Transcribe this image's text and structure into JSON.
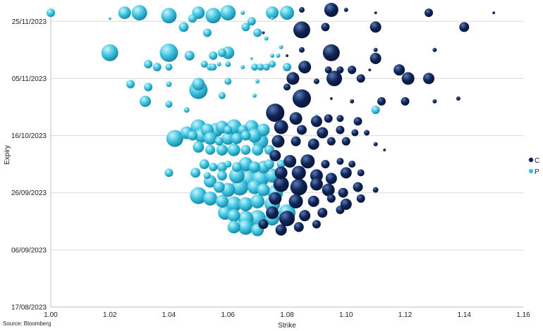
{
  "chart_data": {
    "type": "scatter",
    "subtype": "bubble",
    "xlabel": "Strike",
    "ylabel": "Expiry",
    "xlim": [
      1.0,
      1.16
    ],
    "x_ticks": [
      "1.00",
      "1.02",
      "1.04",
      "1.06",
      "1.08",
      "1.10",
      "1.12",
      "1.14",
      "1.16"
    ],
    "y_ticks": [
      "17/08/2023",
      "06/09/2023",
      "26/09/2023",
      "16/10/2023",
      "05/11/2023",
      "25/11/2023"
    ],
    "y_range_days": [
      0,
      105
    ],
    "y_tick_days": [
      0,
      20,
      40,
      60,
      80,
      100
    ],
    "grid": "horizontal",
    "legend_position": "right",
    "source": "Source: Bloomberg",
    "series": [
      {
        "name": "C",
        "color": "#0f2557",
        "points": [
          [
            1.095,
            104,
            10
          ],
          [
            1.085,
            104,
            4
          ],
          [
            1.1,
            104,
            3
          ],
          [
            1.11,
            103,
            2
          ],
          [
            1.128,
            103,
            6
          ],
          [
            1.15,
            103,
            2
          ],
          [
            1.085,
            97,
            12
          ],
          [
            1.093,
            98,
            6
          ],
          [
            1.11,
            98,
            8
          ],
          [
            1.14,
            98,
            7
          ],
          [
            1.072,
            96,
            2
          ],
          [
            1.085,
            90,
            4
          ],
          [
            1.095,
            89,
            12
          ],
          [
            1.11,
            90,
            3
          ],
          [
            1.13,
            90,
            3
          ],
          [
            1.08,
            88,
            2
          ],
          [
            1.11,
            87,
            8
          ],
          [
            1.086,
            84,
            9
          ],
          [
            1.094,
            83,
            5
          ],
          [
            1.098,
            83,
            5
          ],
          [
            1.102,
            83,
            6
          ],
          [
            1.108,
            83,
            2
          ],
          [
            1.118,
            83,
            8
          ],
          [
            1.082,
            80,
            9
          ],
          [
            1.09,
            79,
            4
          ],
          [
            1.096,
            80,
            11
          ],
          [
            1.105,
            80,
            6
          ],
          [
            1.121,
            80,
            9
          ],
          [
            1.128,
            80,
            8
          ],
          [
            1.08,
            77,
            5
          ],
          [
            1.085,
            73,
            13
          ],
          [
            1.102,
            72,
            3
          ],
          [
            1.112,
            72,
            6
          ],
          [
            1.12,
            72,
            6
          ],
          [
            1.13,
            72,
            3
          ],
          [
            1.138,
            73,
            3
          ],
          [
            1.095,
            73,
            2
          ],
          [
            1.076,
            68,
            13
          ],
          [
            1.083,
            66,
            9
          ],
          [
            1.09,
            65,
            8
          ],
          [
            1.094,
            66,
            6
          ],
          [
            1.098,
            66,
            5
          ],
          [
            1.104,
            65,
            6
          ],
          [
            1.078,
            63,
            10
          ],
          [
            1.085,
            62,
            7
          ],
          [
            1.092,
            61,
            8
          ],
          [
            1.098,
            62,
            6
          ],
          [
            1.103,
            61,
            5
          ],
          [
            1.107,
            61,
            4
          ],
          [
            1.077,
            58,
            9
          ],
          [
            1.083,
            58,
            7
          ],
          [
            1.089,
            57,
            8
          ],
          [
            1.095,
            58,
            6
          ],
          [
            1.1,
            58,
            6
          ],
          [
            1.11,
            57,
            3
          ],
          [
            1.113,
            55,
            2
          ],
          [
            1.076,
            53,
            8
          ],
          [
            1.081,
            51,
            9
          ],
          [
            1.087,
            51,
            10
          ],
          [
            1.093,
            50,
            6
          ],
          [
            1.098,
            51,
            5
          ],
          [
            1.102,
            50,
            5
          ],
          [
            1.078,
            47,
            9
          ],
          [
            1.084,
            47,
            10
          ],
          [
            1.09,
            46,
            9
          ],
          [
            1.095,
            45,
            8
          ],
          [
            1.1,
            47,
            8
          ],
          [
            1.105,
            47,
            5
          ],
          [
            1.078,
            43,
            11
          ],
          [
            1.084,
            42,
            12
          ],
          [
            1.09,
            43,
            9
          ],
          [
            1.094,
            41,
            9
          ],
          [
            1.099,
            40,
            7
          ],
          [
            1.104,
            42,
            7
          ],
          [
            1.076,
            38,
            9
          ],
          [
            1.083,
            37,
            10
          ],
          [
            1.089,
            37,
            8
          ],
          [
            1.095,
            38,
            6
          ],
          [
            1.1,
            36,
            8
          ],
          [
            1.105,
            38,
            6
          ],
          [
            1.11,
            41,
            4
          ],
          [
            1.075,
            33,
            9
          ],
          [
            1.08,
            31,
            11
          ],
          [
            1.086,
            32,
            8
          ],
          [
            1.092,
            33,
            7
          ],
          [
            1.098,
            34,
            6
          ],
          [
            1.072,
            29,
            7
          ],
          [
            1.078,
            27,
            8
          ],
          [
            1.084,
            28,
            7
          ],
          [
            1.09,
            29,
            6
          ]
        ]
      },
      {
        "name": "P",
        "color": "#3ec4e0",
        "points": [
          [
            1.0,
            103,
            6
          ],
          [
            1.025,
            103,
            9
          ],
          [
            1.03,
            103,
            11
          ],
          [
            1.04,
            102,
            11
          ],
          [
            1.05,
            103,
            9
          ],
          [
            1.055,
            102,
            11
          ],
          [
            1.06,
            103,
            11
          ],
          [
            1.065,
            103,
            3
          ],
          [
            1.075,
            103,
            9
          ],
          [
            1.08,
            103,
            10
          ],
          [
            1.048,
            101,
            6
          ],
          [
            1.02,
            101,
            2
          ],
          [
            1.053,
            96,
            6
          ],
          [
            1.066,
            98,
            6
          ],
          [
            1.068,
            100,
            6
          ],
          [
            1.07,
            96,
            6
          ],
          [
            1.073,
            94,
            3
          ],
          [
            1.045,
            98,
            7
          ],
          [
            1.075,
            101,
            2
          ],
          [
            1.02,
            89,
            12
          ],
          [
            1.04,
            89,
            13
          ],
          [
            1.047,
            88,
            7
          ],
          [
            1.055,
            88,
            6
          ],
          [
            1.058,
            89,
            6
          ],
          [
            1.06,
            89,
            9
          ],
          [
            1.068,
            87,
            2
          ],
          [
            1.075,
            88,
            3
          ],
          [
            1.033,
            85,
            6
          ],
          [
            1.036,
            84,
            6
          ],
          [
            1.04,
            84,
            5
          ],
          [
            1.052,
            85,
            5
          ],
          [
            1.054,
            84,
            5
          ],
          [
            1.055,
            84,
            5
          ],
          [
            1.057,
            85,
            3
          ],
          [
            1.06,
            85,
            4
          ],
          [
            1.065,
            84,
            3
          ],
          [
            1.069,
            84,
            5
          ],
          [
            1.071,
            84,
            5
          ],
          [
            1.073,
            84,
            5
          ],
          [
            1.075,
            85,
            5
          ],
          [
            1.08,
            84,
            6
          ],
          [
            1.077,
            88,
            3
          ],
          [
            1.078,
            91,
            3
          ],
          [
            1.027,
            78,
            6
          ],
          [
            1.033,
            77,
            6
          ],
          [
            1.04,
            78,
            4
          ],
          [
            1.05,
            78,
            9
          ],
          [
            1.06,
            79,
            5
          ],
          [
            1.07,
            79,
            3
          ],
          [
            1.05,
            76,
            13
          ],
          [
            1.032,
            72,
            8
          ],
          [
            1.04,
            71,
            5
          ],
          [
            1.046,
            69,
            4
          ],
          [
            1.058,
            74,
            5
          ],
          [
            1.069,
            74,
            3
          ],
          [
            1.11,
            69,
            6
          ],
          [
            1.09,
            67,
            2
          ],
          [
            1.05,
            63,
            11
          ],
          [
            1.053,
            62,
            9
          ],
          [
            1.056,
            62,
            10
          ],
          [
            1.058,
            63,
            9
          ],
          [
            1.06,
            62,
            6
          ],
          [
            1.062,
            63,
            11
          ],
          [
            1.065,
            62,
            7
          ],
          [
            1.068,
            63,
            10
          ],
          [
            1.072,
            62,
            9
          ],
          [
            1.042,
            59,
            12
          ],
          [
            1.046,
            61,
            9
          ],
          [
            1.048,
            60,
            7
          ],
          [
            1.051,
            60,
            10
          ],
          [
            1.054,
            59,
            9
          ],
          [
            1.057,
            58,
            6
          ],
          [
            1.06,
            59,
            9
          ],
          [
            1.063,
            59,
            8
          ],
          [
            1.066,
            60,
            7
          ],
          [
            1.069,
            60,
            10
          ],
          [
            1.071,
            58,
            11
          ],
          [
            1.05,
            56,
            8
          ],
          [
            1.054,
            55,
            7
          ],
          [
            1.058,
            55,
            8
          ],
          [
            1.062,
            55,
            9
          ],
          [
            1.066,
            55,
            7
          ],
          [
            1.07,
            55,
            8
          ],
          [
            1.074,
            55,
            7
          ],
          [
            1.052,
            50,
            7
          ],
          [
            1.055,
            49,
            6
          ],
          [
            1.058,
            49,
            7
          ],
          [
            1.06,
            50,
            5
          ],
          [
            1.063,
            49,
            7
          ],
          [
            1.066,
            50,
            10
          ],
          [
            1.069,
            49,
            8
          ],
          [
            1.072,
            49,
            9
          ],
          [
            1.074,
            50,
            7
          ],
          [
            1.078,
            50,
            6
          ],
          [
            1.04,
            47,
            6
          ],
          [
            1.049,
            47,
            7
          ],
          [
            1.053,
            46,
            5
          ],
          [
            1.058,
            46,
            7
          ],
          [
            1.063,
            46,
            11
          ],
          [
            1.067,
            45,
            13
          ],
          [
            1.071,
            45,
            12
          ],
          [
            1.075,
            46,
            10
          ],
          [
            1.054,
            44,
            9
          ],
          [
            1.057,
            42,
            8
          ],
          [
            1.06,
            41,
            10
          ],
          [
            1.064,
            42,
            12
          ],
          [
            1.069,
            42,
            10
          ],
          [
            1.072,
            41,
            9
          ],
          [
            1.076,
            40,
            11
          ],
          [
            1.05,
            39,
            12
          ],
          [
            1.054,
            38,
            10
          ],
          [
            1.058,
            37,
            9
          ],
          [
            1.062,
            36,
            11
          ],
          [
            1.066,
            36,
            10
          ],
          [
            1.07,
            37,
            10
          ],
          [
            1.075,
            36,
            11
          ],
          [
            1.08,
            33,
            12
          ],
          [
            1.059,
            33,
            10
          ],
          [
            1.062,
            32,
            9
          ],
          [
            1.066,
            31,
            11
          ],
          [
            1.07,
            31,
            12
          ],
          [
            1.075,
            31,
            10
          ],
          [
            1.062,
            28,
            9
          ],
          [
            1.066,
            28,
            11
          ],
          [
            1.07,
            27,
            9
          ]
        ]
      }
    ]
  }
}
